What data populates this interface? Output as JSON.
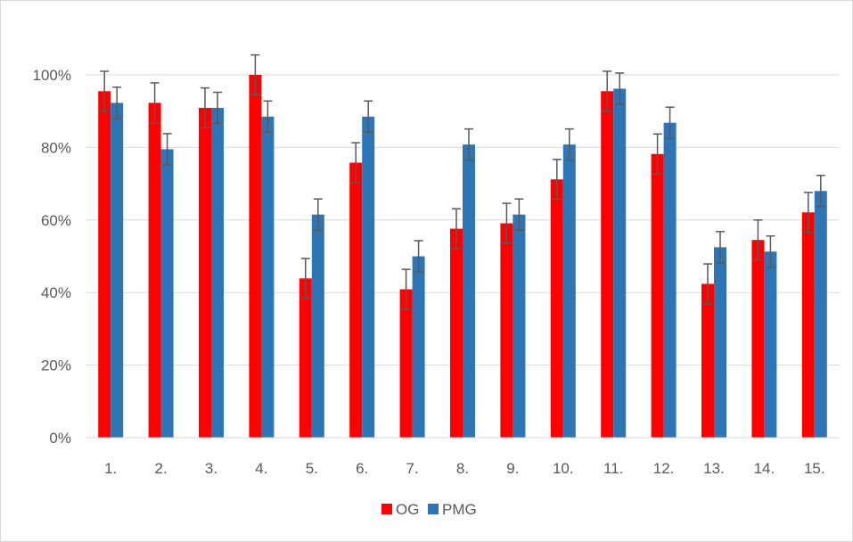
{
  "chart_data": {
    "type": "bar",
    "title": "",
    "xlabel": "",
    "ylabel": "",
    "ylim": [
      0,
      1
    ],
    "yticks": [
      0,
      0.2,
      0.4,
      0.6,
      0.8,
      1.0
    ],
    "ytick_labels": [
      "0%",
      "20%",
      "40%",
      "60%",
      "80%",
      "100%"
    ],
    "grid": true,
    "legend_position": "bottom",
    "categories": [
      "1.",
      "2.",
      "3.",
      "4.",
      "5.",
      "6.",
      "7.",
      "8.",
      "9.",
      "10.",
      "11.",
      "12.",
      "13.",
      "14.",
      "15."
    ],
    "series": [
      {
        "name": "OG",
        "color": "#ff0000",
        "values": [
          0.955,
          0.923,
          0.909,
          1.0,
          0.439,
          0.758,
          0.409,
          0.576,
          0.591,
          0.712,
          0.955,
          0.782,
          0.424,
          0.545,
          0.621
        ],
        "error": [
          0.055,
          0.055,
          0.055,
          0.055,
          0.055,
          0.055,
          0.055,
          0.055,
          0.055,
          0.055,
          0.055,
          0.055,
          0.055,
          0.055,
          0.055
        ]
      },
      {
        "name": "PMG",
        "color": "#2e75b6",
        "values": [
          0.923,
          0.795,
          0.909,
          0.885,
          0.615,
          0.885,
          0.5,
          0.808,
          0.615,
          0.808,
          0.962,
          0.868,
          0.525,
          0.513,
          0.68
        ],
        "error": [
          0.043,
          0.043,
          0.043,
          0.043,
          0.043,
          0.043,
          0.043,
          0.043,
          0.043,
          0.043,
          0.043,
          0.043,
          0.043,
          0.043,
          0.043
        ]
      }
    ]
  }
}
